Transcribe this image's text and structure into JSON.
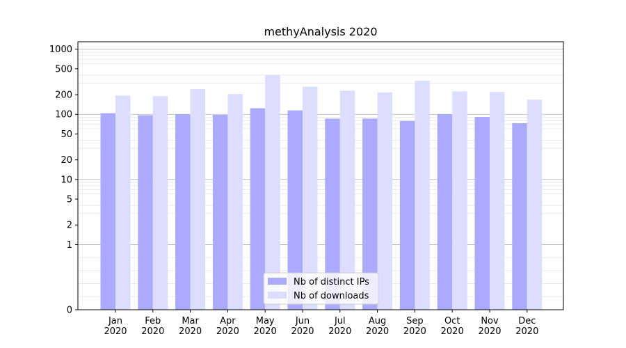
{
  "chart_data": {
    "type": "bar",
    "title": "methyAnalysis 2020",
    "xlabel": "",
    "ylabel": "",
    "y_scale": "symlog",
    "ylim": [
      0,
      1300
    ],
    "grid": "horizontal, major and minor",
    "legend_position": "bottom-center",
    "categories": [
      "Jan\n2020",
      "Feb\n2020",
      "Mar\n2020",
      "Apr\n2020",
      "May\n2020",
      "Jun\n2020",
      "Jul\n2020",
      "Aug\n2020",
      "Sep\n2020",
      "Oct\n2020",
      "Nov\n2020",
      "Dec\n2020"
    ],
    "y_ticks": [
      0,
      1,
      2,
      5,
      10,
      20,
      50,
      100,
      200,
      500,
      1000
    ],
    "series": [
      {
        "name": "Nb of distinct IPs",
        "color": "#aaaaff",
        "values": [
          104,
          97,
          100,
          98,
          124,
          115,
          86,
          86,
          79,
          100,
          91,
          73
        ]
      },
      {
        "name": "Nb of downloads",
        "color": "#ddddff",
        "values": [
          194,
          190,
          244,
          205,
          397,
          265,
          230,
          217,
          327,
          225,
          220,
          168
        ]
      }
    ]
  }
}
